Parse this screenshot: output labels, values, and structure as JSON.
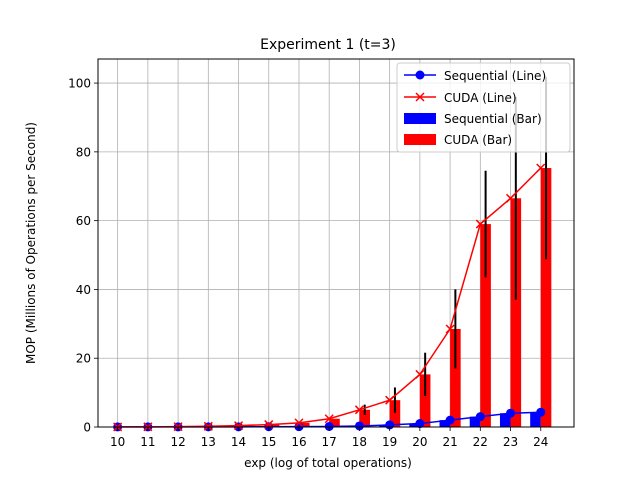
{
  "chart_data": {
    "type": "bar",
    "title": "Experiment 1 (t=3)",
    "xlabel": "exp (log of total operations)",
    "ylabel": "MOP (Millions of Operations per Second)",
    "x": [
      10,
      11,
      12,
      13,
      14,
      15,
      16,
      17,
      18,
      19,
      20,
      21,
      22,
      23,
      24
    ],
    "xlim": [
      9.35,
      25.1
    ],
    "ylim": [
      0,
      107
    ],
    "yticks": [
      0,
      20,
      40,
      60,
      80,
      100
    ],
    "grid": true,
    "legend_position": "top-right",
    "legend": [
      "Sequential (Line)",
      "CUDA (Line)",
      "Sequential (Bar)",
      "CUDA (Bar)"
    ],
    "series": [
      {
        "name": "Sequential",
        "color": "#0000ff",
        "line_marker": "circle",
        "values": [
          0.02,
          0.02,
          0.03,
          0.04,
          0.05,
          0.08,
          0.1,
          0.15,
          0.3,
          0.6,
          1.0,
          2.0,
          3.0,
          4.0,
          4.3
        ],
        "errors": [
          0,
          0,
          0,
          0,
          0,
          0,
          0,
          0,
          0,
          0,
          0,
          0,
          0,
          0,
          0
        ]
      },
      {
        "name": "CUDA",
        "color": "#ff0000",
        "line_marker": "x",
        "values": [
          0.02,
          0.05,
          0.1,
          0.2,
          0.4,
          0.7,
          1.2,
          2.4,
          5.0,
          7.8,
          15.3,
          28.5,
          59.0,
          66.5,
          75.3
        ],
        "errors": [
          0,
          0,
          0,
          0,
          0,
          0,
          0,
          0,
          1.5,
          3.7,
          6.3,
          11.5,
          15.5,
          29.5,
          26.5
        ]
      }
    ]
  }
}
